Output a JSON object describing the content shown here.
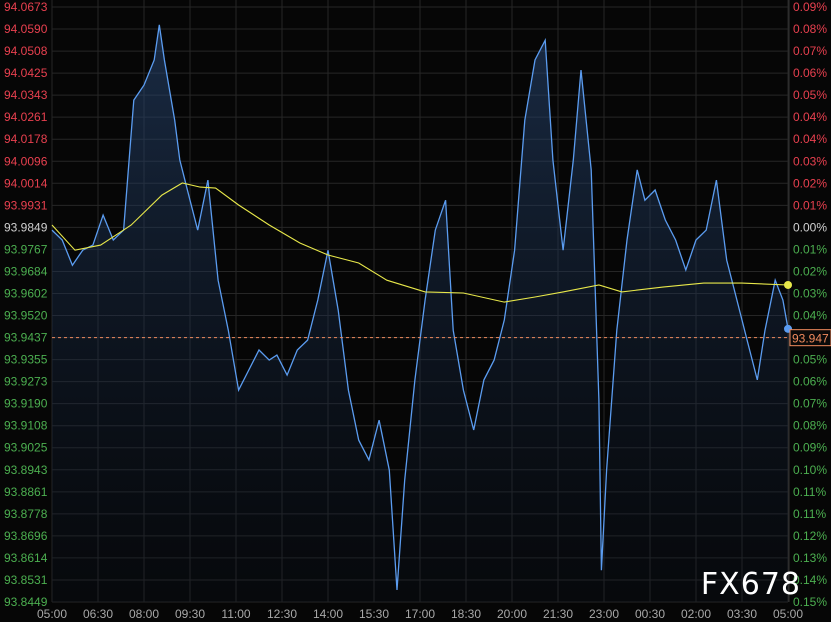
{
  "chart_data": {
    "type": "line",
    "title": "",
    "xlabel": "",
    "ylabel": "",
    "grid": true,
    "ylim": [
      93.8449,
      94.0673
    ],
    "left_ticks": [
      "94.0673",
      "94.0590",
      "94.0508",
      "94.0425",
      "94.0343",
      "94.0261",
      "94.0178",
      "94.0096",
      "94.0014",
      "93.9931",
      "93.9849",
      "93.9767",
      "93.9684",
      "93.9602",
      "93.9520",
      "93.9437",
      "93.9355",
      "93.9273",
      "93.9190",
      "93.9108",
      "93.9025",
      "93.8943",
      "93.8861",
      "93.8778",
      "93.8696",
      "93.8614",
      "93.8531",
      "93.8449"
    ],
    "right_ticks": [
      "0.09%",
      "0.08%",
      "0.07%",
      "0.06%",
      "0.05%",
      "0.04%",
      "0.04%",
      "0.03%",
      "0.02%",
      "0.01%",
      "0.00%",
      "0.01%",
      "0.02%",
      "0.03%",
      "0.04%",
      "",
      "0.05%",
      "0.06%",
      "0.07%",
      "0.08%",
      "0.09%",
      "0.10%",
      "0.11%",
      "0.11%",
      "0.12%",
      "0.13%",
      "0.14%",
      "0.15%"
    ],
    "x_ticks": [
      "05:00",
      "06:30",
      "08:00",
      "09:30",
      "11:00",
      "12:30",
      "14:00",
      "15:30",
      "17:00",
      "18:30",
      "20:00",
      "21:30",
      "23:00",
      "00:30",
      "02:00",
      "03:30",
      "05:00"
    ],
    "reference_price": 93.9849,
    "last_price": 93.947,
    "last_price_label": "93.947",
    "prev_line_price": 93.9437,
    "colors": {
      "up": "#e8404f",
      "down": "#4caf50",
      "neutral": "#d0d0d0",
      "price": "#5b9cf0",
      "ma": "#e8e84a",
      "last": "#f08a5d"
    },
    "series": [
      {
        "role": "price",
        "points": [
          [
            "05:00",
            93.9839
          ],
          [
            "05:20",
            93.9802
          ],
          [
            "05:40",
            93.9708
          ],
          [
            "06:00",
            93.9764
          ],
          [
            "06:20",
            93.9783
          ],
          [
            "06:40",
            93.9895
          ],
          [
            "07:00",
            93.9802
          ],
          [
            "07:20",
            93.9839
          ],
          [
            "07:40",
            94.0325
          ],
          [
            "08:00",
            94.0381
          ],
          [
            "08:20",
            94.0475
          ],
          [
            "08:30",
            94.0606
          ],
          [
            "08:40",
            94.0475
          ],
          [
            "09:00",
            94.025
          ],
          [
            "09:10",
            94.0101
          ],
          [
            "09:30",
            93.9951
          ],
          [
            "09:45",
            93.9839
          ],
          [
            "10:05",
            94.0026
          ],
          [
            "10:25",
            93.9652
          ],
          [
            "10:45",
            93.9465
          ],
          [
            "11:05",
            93.9241
          ],
          [
            "11:25",
            93.9316
          ],
          [
            "11:45",
            93.9391
          ],
          [
            "12:05",
            93.9353
          ],
          [
            "12:20",
            93.9372
          ],
          [
            "12:40",
            93.9297
          ],
          [
            "13:00",
            93.9391
          ],
          [
            "13:20",
            93.9428
          ],
          [
            "13:40",
            93.9578
          ],
          [
            "14:00",
            93.9764
          ],
          [
            "14:20",
            93.954
          ],
          [
            "14:40",
            93.9241
          ],
          [
            "15:00",
            93.9054
          ],
          [
            "15:20",
            93.898
          ],
          [
            "15:40",
            93.9129
          ],
          [
            "16:00",
            93.8942
          ],
          [
            "16:15",
            93.8494
          ],
          [
            "16:30",
            93.8905
          ],
          [
            "16:50",
            93.9279
          ],
          [
            "17:10",
            93.9578
          ],
          [
            "17:30",
            93.9839
          ],
          [
            "17:50",
            93.9951
          ],
          [
            "18:05",
            93.9465
          ],
          [
            "18:25",
            93.9241
          ],
          [
            "18:45",
            93.9092
          ],
          [
            "19:05",
            93.9279
          ],
          [
            "19:25",
            93.9353
          ],
          [
            "19:45",
            93.9503
          ],
          [
            "20:05",
            93.9764
          ],
          [
            "20:25",
            94.025
          ],
          [
            "20:45",
            94.0475
          ],
          [
            "21:05",
            94.0549
          ],
          [
            "21:20",
            94.0101
          ],
          [
            "21:40",
            93.9764
          ],
          [
            "22:00",
            94.0101
          ],
          [
            "22:15",
            94.0437
          ],
          [
            "22:35",
            94.0064
          ],
          [
            "22:50",
            93.9204
          ],
          [
            "22:55",
            93.8568
          ],
          [
            "23:05",
            93.8942
          ],
          [
            "23:25",
            93.9465
          ],
          [
            "23:45",
            93.9802
          ],
          [
            "00:05",
            94.0064
          ],
          [
            "00:20",
            93.9951
          ],
          [
            "00:40",
            93.9989
          ],
          [
            "01:00",
            93.9877
          ],
          [
            "01:20",
            93.9802
          ],
          [
            "01:40",
            93.969
          ],
          [
            "02:00",
            93.9802
          ],
          [
            "02:20",
            93.9839
          ],
          [
            "02:40",
            94.0026
          ],
          [
            "03:00",
            93.9727
          ],
          [
            "03:20",
            93.9578
          ],
          [
            "03:40",
            93.9428
          ],
          [
            "04:00",
            93.9279
          ],
          [
            "04:15",
            93.9465
          ],
          [
            "04:35",
            93.9652
          ],
          [
            "04:50",
            93.9578
          ],
          [
            "05:00",
            93.947
          ]
        ]
      },
      {
        "role": "moving-average",
        "points": [
          [
            "05:00",
            93.9858
          ],
          [
            "05:45",
            93.9764
          ],
          [
            "06:35",
            93.9783
          ],
          [
            "07:35",
            93.9858
          ],
          [
            "08:35",
            93.997
          ],
          [
            "09:15",
            94.0015
          ],
          [
            "09:50",
            94.0
          ],
          [
            "10:20",
            93.9996
          ],
          [
            "11:05",
            93.9933
          ],
          [
            "12:05",
            93.9858
          ],
          [
            "13:05",
            93.9791
          ],
          [
            "14:00",
            93.9746
          ],
          [
            "15:00",
            93.9716
          ],
          [
            "15:55",
            93.9652
          ],
          [
            "17:10",
            93.9608
          ],
          [
            "18:25",
            93.9604
          ],
          [
            "19:45",
            93.957
          ],
          [
            "20:45",
            93.9589
          ],
          [
            "21:40",
            93.9608
          ],
          [
            "22:50",
            93.9634
          ],
          [
            "23:35",
            93.9608
          ],
          [
            "00:55",
            93.9626
          ],
          [
            "02:15",
            93.9641
          ],
          [
            "03:30",
            93.9641
          ],
          [
            "05:00",
            93.9634
          ]
        ]
      }
    ]
  },
  "watermark": "FX678"
}
